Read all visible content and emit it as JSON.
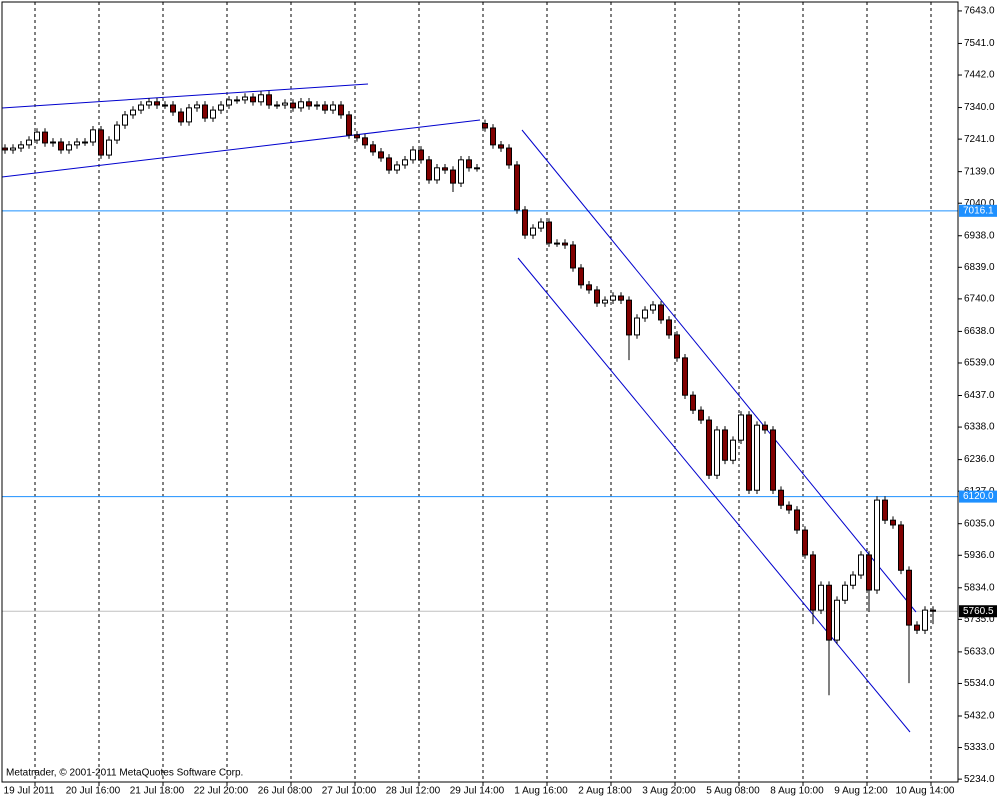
{
  "chart_data": {
    "type": "candlestick",
    "watermark": "Metatrader, © 2001-2011 MetaQuotes Software Corp.",
    "xlim": [
      -0.375,
      119.125
    ],
    "ylim": [
      5225,
      7671
    ],
    "grid": true,
    "bull_color": "#ffffff",
    "bear_color": "#800000",
    "line_color": "#000000",
    "hline_color": "#1e90ff",
    "last_color": "#c0c0c0",
    "xticks": [
      {
        "value": 3.75,
        "label": "19 Jul 2011"
      },
      {
        "value": 11.75,
        "label": "20 Jul 16:00"
      },
      {
        "value": 19.75,
        "label": "21 Jul 18:00"
      },
      {
        "value": 27.75,
        "label": "22 Jul 20:00"
      },
      {
        "value": 35.75,
        "label": "26 Jul 08:00"
      },
      {
        "value": 43.75,
        "label": "27 Jul 10:00"
      },
      {
        "value": 51.75,
        "label": "28 Jul 12:00"
      },
      {
        "value": 59.75,
        "label": "29 Jul 14:00"
      },
      {
        "value": 67.75,
        "label": "1 Aug 16:00"
      },
      {
        "value": 75.75,
        "label": "2 Aug 18:00"
      },
      {
        "value": 83.75,
        "label": "3 Aug 20:00"
      },
      {
        "value": 91.75,
        "label": "5 Aug 08:00"
      },
      {
        "value": 99.75,
        "label": "8 Aug 10:00"
      },
      {
        "value": 107.75,
        "label": "9 Aug 12:00"
      },
      {
        "value": 115.75,
        "label": "10 Aug 14:00"
      }
    ],
    "yticks": [
      {
        "value": 7643,
        "label": "7643.0"
      },
      {
        "value": 7541,
        "label": "7541.0"
      },
      {
        "value": 7442,
        "label": "7442.0"
      },
      {
        "value": 7340,
        "label": "7340.0"
      },
      {
        "value": 7241,
        "label": "7241.0"
      },
      {
        "value": 7139,
        "label": "7139.0"
      },
      {
        "value": 7040,
        "label": "7040.0"
      },
      {
        "value": 6938,
        "label": "6938.0"
      },
      {
        "value": 6839,
        "label": "6839.0"
      },
      {
        "value": 6740,
        "label": "6740.0"
      },
      {
        "value": 6638,
        "label": "6638.0"
      },
      {
        "value": 6539,
        "label": "6539.0"
      },
      {
        "value": 6437,
        "label": "6437.0"
      },
      {
        "value": 6338,
        "label": "6338.0"
      },
      {
        "value": 6236,
        "label": "6236.0"
      },
      {
        "value": 6137,
        "label": "6137.0"
      },
      {
        "value": 6035,
        "label": "6035.0"
      },
      {
        "value": 5936,
        "label": "5936.0"
      },
      {
        "value": 5834,
        "label": "5834.0"
      },
      {
        "value": 5735,
        "label": "5735.0"
      },
      {
        "value": 5633,
        "label": "5633.0"
      },
      {
        "value": 5534,
        "label": "5534.0"
      },
      {
        "value": 5432,
        "label": "5432.0"
      },
      {
        "value": 5333,
        "label": "5333.0"
      },
      {
        "value": 5234,
        "label": "5234.0"
      }
    ],
    "hlines": [
      7016.1,
      {
        "value": 6120,
        "label": "6120.0"
      }
    ],
    "open": [
      7213,
      7207,
      7213,
      7223,
      7238,
      7263,
      7229,
      7232,
      7207,
      7223,
      7232,
      7232,
      7270,
      7191,
      7238,
      7285,
      7317,
      7332,
      7348,
      7358,
      7348,
      7348,
      7326,
      7295,
      7339,
      7348,
      7307,
      7332,
      7348,
      7364,
      7364,
      7373,
      7358,
      7380,
      7348,
      7348,
      7354,
      7339,
      7358,
      7345,
      7348,
      7332,
      7348,
      7317,
      7254,
      7245,
      7223,
      7201,
      7182,
      7144,
      7160,
      7176,
      7207,
      7176,
      7113,
      7151,
      7144,
      7103,
      7176,
      7151,
      7290,
      7276,
      7223,
      7213,
      7160,
      7019,
      6940,
      6962,
      6981,
      6915,
      6915,
      6909,
      6837,
      6784,
      6768,
      6727,
      6736,
      6749,
      6736,
      6627,
      6680,
      6705,
      6721,
      6674,
      6627,
      6555,
      6438,
      6391,
      6360,
      6187,
      6329,
      6234,
      6297,
      6376,
      6140,
      6344,
      6329,
      6140,
      6093,
      6078,
      6015,
      5937,
      5764,
      5842,
      5670,
      5795,
      5842,
      5874,
      5937,
      5827,
      6109,
      6046,
      6031,
      5889,
      5717,
      5701,
      5764
    ],
    "high": [
      7225,
      7225,
      7235,
      7250,
      7275,
      7275,
      7244,
      7244,
      7235,
      7244,
      7244,
      7282,
      7282,
      7250,
      7297,
      7329,
      7344,
      7360,
      7370,
      7370,
      7360,
      7360,
      7338,
      7351,
      7360,
      7360,
      7344,
      7360,
      7376,
      7376,
      7385,
      7385,
      7392,
      7392,
      7360,
      7366,
      7366,
      7370,
      7370,
      7360,
      7360,
      7360,
      7360,
      7329,
      7266,
      7257,
      7235,
      7213,
      7194,
      7172,
      7188,
      7219,
      7219,
      7188,
      7163,
      7163,
      7156,
      7188,
      7188,
      7163,
      7302,
      7288,
      7235,
      7225,
      7172,
      7031,
      6974,
      6993,
      6993,
      6927,
      6927,
      6921,
      6849,
      6796,
      6780,
      6748,
      6761,
      6761,
      6748,
      6692,
      6717,
      6733,
      6733,
      6686,
      6639,
      6567,
      6450,
      6403,
      6372,
      6341,
      6341,
      6309,
      6388,
      6388,
      6356,
      6356,
      6341,
      6152,
      6105,
      6090,
      6027,
      5949,
      5854,
      5854,
      5807,
      5854,
      5886,
      5949,
      5949,
      6121,
      6121,
      6058,
      6043,
      5901,
      5729,
      5776,
      5776
    ],
    "low": [
      7195,
      7195,
      7201,
      7211,
      7226,
      7217,
      7217,
      7195,
      7195,
      7211,
      7220,
      7220,
      7179,
      7179,
      7226,
      7273,
      7305,
      7320,
      7336,
      7336,
      7336,
      7314,
      7283,
      7283,
      7327,
      7295,
      7295,
      7320,
      7336,
      7352,
      7352,
      7346,
      7346,
      7336,
      7336,
      7336,
      7327,
      7327,
      7333,
      7333,
      7320,
      7320,
      7305,
      7242,
      7233,
      7211,
      7189,
      7170,
      7132,
      7132,
      7148,
      7164,
      7164,
      7101,
      7101,
      7132,
      7075,
      7091,
      7139,
      7139,
      7264,
      7211,
      7201,
      7148,
      7007,
      6928,
      6928,
      6950,
      6903,
      6903,
      6897,
      6825,
      6772,
      6756,
      6715,
      6715,
      6724,
      6724,
      6548,
      6615,
      6668,
      6693,
      6662,
      6615,
      6543,
      6426,
      6379,
      6348,
      6175,
      6175,
      6222,
      6222,
      6285,
      6128,
      6128,
      6317,
      6128,
      6081,
      6066,
      6003,
      5925,
      5720,
      5752,
      5497,
      5658,
      5783,
      5830,
      5862,
      5758,
      5815,
      6034,
      6019,
      5877,
      5535,
      5689,
      5689,
      5720
    ],
    "close": [
      7207,
      7213,
      7223,
      7238,
      7263,
      7229,
      7232,
      7207,
      7223,
      7232,
      7232,
      7270,
      7191,
      7238,
      7285,
      7317,
      7332,
      7348,
      7358,
      7348,
      7348,
      7326,
      7295,
      7339,
      7348,
      7307,
      7332,
      7348,
      7364,
      7364,
      7373,
      7358,
      7380,
      7348,
      7348,
      7354,
      7339,
      7358,
      7345,
      7348,
      7332,
      7348,
      7317,
      7254,
      7245,
      7223,
      7201,
      7182,
      7144,
      7160,
      7176,
      7207,
      7176,
      7113,
      7151,
      7144,
      7103,
      7176,
      7151,
      7151,
      7276,
      7223,
      7213,
      7160,
      7019,
      6940,
      6962,
      6981,
      6915,
      6915,
      6909,
      6837,
      6784,
      6768,
      6727,
      6736,
      6749,
      6736,
      6627,
      6680,
      6705,
      6721,
      6674,
      6627,
      6555,
      6438,
      6391,
      6360,
      6187,
      6329,
      6234,
      6297,
      6376,
      6140,
      6344,
      6329,
      6140,
      6093,
      6078,
      6015,
      5937,
      5764,
      5842,
      5670,
      5795,
      5842,
      5874,
      5937,
      5827,
      6109,
      6046,
      6031,
      5889,
      5717,
      5701,
      5764,
      5760.5
    ]
  }
}
